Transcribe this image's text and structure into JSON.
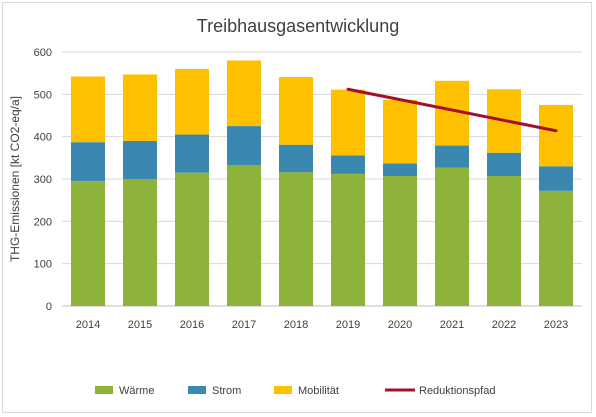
{
  "chart_data": {
    "type": "bar",
    "stacked": true,
    "title": "Treibhausgasentwicklung",
    "xlabel": "",
    "ylabel": "THG-Emissionen [kt CO2-eq/a]",
    "ylim": [
      0,
      600
    ],
    "yticks": [
      0,
      100,
      200,
      300,
      400,
      500,
      600
    ],
    "grid": true,
    "legend_position": "bottom",
    "categories": [
      "2014",
      "2015",
      "2016",
      "2017",
      "2018",
      "2019",
      "2020",
      "2021",
      "2022",
      "2023"
    ],
    "series": [
      {
        "name": "Wärme",
        "color": "#8db33a",
        "values": [
          295,
          300,
          315,
          333,
          316,
          312,
          307,
          327,
          307,
          272
        ]
      },
      {
        "name": "Strom",
        "color": "#3a88b0",
        "values": [
          92,
          90,
          90,
          92,
          65,
          44,
          30,
          52,
          55,
          58
        ]
      },
      {
        "name": "Mobilität",
        "color": "#ffc000",
        "values": [
          155,
          157,
          155,
          155,
          160,
          155,
          150,
          153,
          150,
          145
        ]
      }
    ],
    "line_series": {
      "name": "Reduktionspfad",
      "color": "#a50f2d",
      "x": [
        "2019",
        "2023"
      ],
      "values": [
        512,
        414
      ]
    }
  }
}
